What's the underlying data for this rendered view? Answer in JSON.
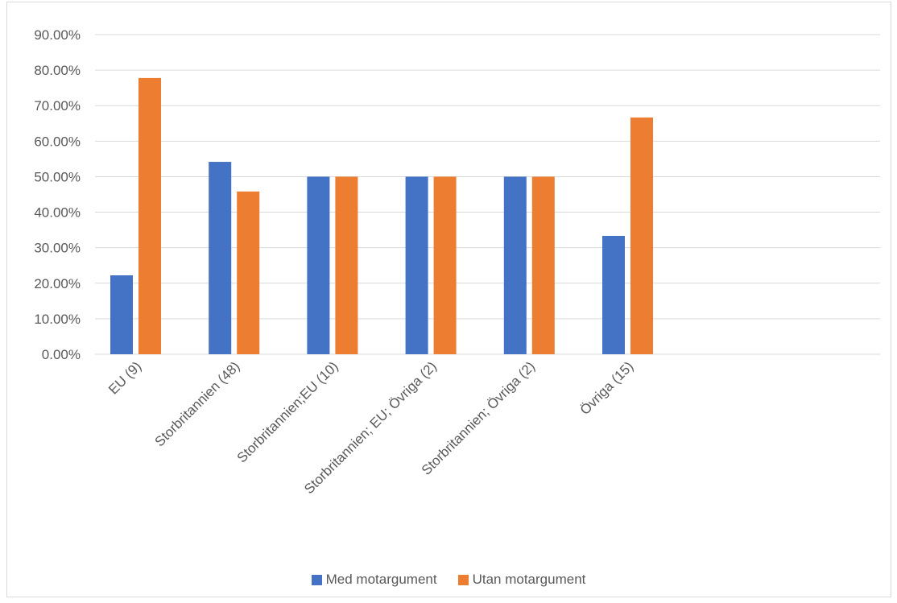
{
  "chart_data": {
    "type": "bar",
    "categories": [
      "EU (9)",
      "Storbritannien (48)",
      "Storbritannien;EU (10)",
      "Storbritannien; EU; Övriga (2)",
      "Storbritannien; Övriga (2)",
      "Övriga (15)"
    ],
    "series": [
      {
        "name": "Med motargument",
        "color": "#4472c4",
        "values": [
          22.22,
          54.17,
          50.0,
          50.0,
          50.0,
          33.33
        ]
      },
      {
        "name": "Utan motargument",
        "color": "#ed7d31",
        "values": [
          77.78,
          45.83,
          50.0,
          50.0,
          50.0,
          66.67
        ]
      }
    ],
    "ylim": [
      0,
      90
    ],
    "yticks": [
      "0.00%",
      "10.00%",
      "20.00%",
      "30.00%",
      "40.00%",
      "50.00%",
      "60.00%",
      "70.00%",
      "80.00%",
      "90.00%"
    ],
    "grid": true,
    "legend": "bottom",
    "gridline_color": "#d9d9d9"
  }
}
